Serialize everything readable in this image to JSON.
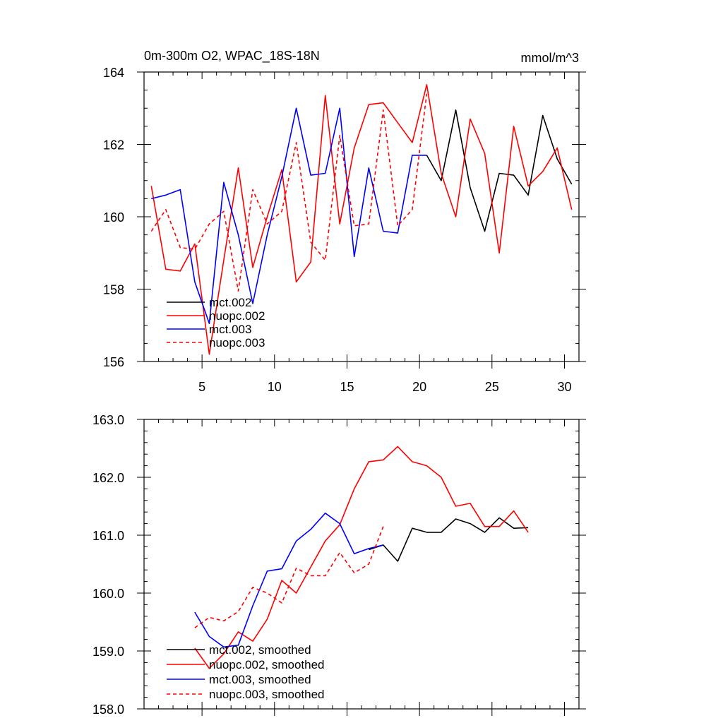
{
  "figure": {
    "top_title": "0m-300m O2, WPAC_18S-18N",
    "top_units": "mmol/m^3"
  },
  "chart_data": [
    {
      "type": "line",
      "panel": "top",
      "title": "0m-300m O2, WPAC_18S-18N",
      "right_title": "mmol/m^3",
      "xlabel": "",
      "ylabel": "",
      "xlim": [
        1,
        31
      ],
      "ylim": [
        156,
        164
      ],
      "xticks": [
        5,
        10,
        15,
        20,
        25,
        30
      ],
      "xtick_labels": [
        "5",
        "10",
        "15",
        "20",
        "25",
        "30"
      ],
      "yticks": [
        156,
        158,
        160,
        162,
        164
      ],
      "ytick_labels": [
        "156",
        "158",
        "160",
        "162",
        "164"
      ],
      "legend_position": "bottom-left",
      "series": [
        {
          "name": "mct.002",
          "color": "#000000",
          "dash": "solid",
          "x": [
            20.5,
            21.5,
            22.5,
            23.5,
            24.5,
            25.5,
            26.5,
            27.5,
            28.5,
            29.5,
            30.5
          ],
          "values": [
            161.7,
            161.0,
            162.95,
            160.8,
            159.6,
            161.2,
            161.15,
            160.6,
            162.8,
            161.6,
            160.9
          ]
        },
        {
          "name": "nuopc.002",
          "color": "#ff0000",
          "dash": "solid",
          "x": [
            1.5,
            2.5,
            3.5,
            4.5,
            5.5,
            6.5,
            7.5,
            8.5,
            9.5,
            10.5,
            11.5,
            12.5,
            13.5,
            14.5,
            15.5,
            16.5,
            17.5,
            18.5,
            19.5,
            20.5,
            21.5,
            22.5,
            23.5,
            24.5,
            25.5,
            26.5,
            27.5,
            28.5,
            29.5,
            30.5
          ],
          "values": [
            160.85,
            158.55,
            158.5,
            159.25,
            156.2,
            158.8,
            161.35,
            158.6,
            160.0,
            161.3,
            158.2,
            158.75,
            163.35,
            159.8,
            161.9,
            163.1,
            163.15,
            162.6,
            162.05,
            163.65,
            161.2,
            160.0,
            162.7,
            161.75,
            159.0,
            162.5,
            160.85,
            161.25,
            161.9,
            160.2
          ]
        },
        {
          "name": "mct.003",
          "color": "#0000ff",
          "dash": "solid",
          "x": [
            1.5,
            2.5,
            3.5,
            4.5,
            5.5,
            6.5,
            7.5,
            8.5,
            9.5,
            10.5,
            11.5,
            12.5,
            13.5,
            14.5,
            15.5,
            16.5,
            17.5,
            18.5,
            19.5,
            20.5
          ],
          "values": [
            160.5,
            160.6,
            160.75,
            158.2,
            157.05,
            160.95,
            159.5,
            157.6,
            159.5,
            161.1,
            163.0,
            161.15,
            161.2,
            163.0,
            158.9,
            161.35,
            159.6,
            159.55,
            161.7,
            161.7
          ]
        },
        {
          "name": "nuopc.003",
          "color": "#ff0000",
          "dash": "dashed",
          "x": [
            1.5,
            2.5,
            3.5,
            4.5,
            5.5,
            6.5,
            7.5,
            8.5,
            9.5,
            10.5,
            11.5,
            12.5,
            13.5,
            14.5,
            15.5,
            16.5,
            17.5,
            18.5,
            19.5,
            20.5
          ],
          "values": [
            159.6,
            160.2,
            159.15,
            159.1,
            159.8,
            160.15,
            157.95,
            160.75,
            159.8,
            160.15,
            162.05,
            159.3,
            158.8,
            162.25,
            159.75,
            159.8,
            162.95,
            159.75,
            160.2,
            163.4
          ]
        }
      ]
    },
    {
      "type": "line",
      "panel": "bottom",
      "title": "",
      "xlabel": "",
      "ylabel": "",
      "xlim": [
        1,
        31
      ],
      "ylim": [
        158.0,
        163.0
      ],
      "xticks": [
        5,
        10,
        15,
        20,
        25,
        30
      ],
      "xtick_labels": [],
      "yticks": [
        158,
        159,
        160,
        161,
        162,
        163
      ],
      "ytick_labels": [
        "158.0",
        "159.0",
        "160.0",
        "161.0",
        "162.0",
        "163.0"
      ],
      "legend_position": "bottom-left",
      "series": [
        {
          "name": "mct.002, smoothed",
          "color": "#000000",
          "dash": "solid",
          "x": [
            16.5,
            17.5,
            18.5,
            19.5,
            20.5,
            21.5,
            22.5,
            23.5,
            24.5,
            25.5,
            26.5,
            27.5
          ],
          "values": [
            160.75,
            160.83,
            160.55,
            161.12,
            161.05,
            161.05,
            161.28,
            161.2,
            161.05,
            161.3,
            161.12,
            161.13
          ]
        },
        {
          "name": "nuopc.002, smoothed",
          "color": "#ff0000",
          "dash": "solid",
          "x": [
            4.5,
            5.5,
            6.5,
            7.5,
            8.5,
            9.5,
            10.5,
            11.5,
            12.5,
            13.5,
            14.5,
            15.5,
            16.5,
            17.5,
            18.5,
            19.5,
            20.5,
            21.5,
            22.5,
            23.5,
            24.5,
            25.5,
            26.5,
            27.5
          ],
          "values": [
            159.05,
            158.7,
            158.95,
            159.33,
            159.17,
            159.55,
            160.22,
            160.0,
            160.45,
            160.9,
            161.18,
            161.8,
            162.27,
            162.3,
            162.53,
            162.27,
            162.2,
            162.0,
            161.5,
            161.55,
            161.15,
            161.15,
            161.42,
            161.05
          ]
        },
        {
          "name": "mct.003, smoothed",
          "color": "#0000ff",
          "dash": "solid",
          "x": [
            4.5,
            5.5,
            6.5,
            7.5,
            8.5,
            9.5,
            10.5,
            11.5,
            12.5,
            13.5,
            14.5,
            15.5,
            16.5,
            17.5
          ],
          "values": [
            159.67,
            159.25,
            159.07,
            159.1,
            159.78,
            160.38,
            160.42,
            160.9,
            161.1,
            161.38,
            161.2,
            160.68,
            160.77,
            160.83
          ]
        },
        {
          "name": "nuopc.003, smoothed",
          "color": "#ff0000",
          "dash": "dashed",
          "x": [
            4.5,
            5.5,
            6.5,
            7.5,
            8.5,
            9.5,
            10.5,
            11.5,
            12.5,
            13.5,
            14.5,
            15.5,
            16.5,
            17.5
          ],
          "values": [
            159.4,
            159.58,
            159.52,
            159.68,
            160.1,
            160.0,
            159.83,
            160.43,
            160.3,
            160.3,
            160.7,
            160.35,
            160.5,
            161.15
          ]
        }
      ]
    }
  ]
}
